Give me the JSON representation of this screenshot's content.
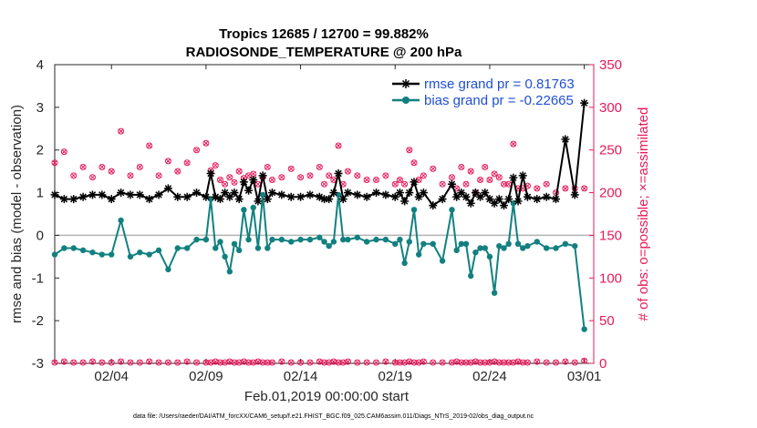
{
  "chart_data": {
    "type": "line",
    "title": [
      "Tropics 12685 / 12700 = 99.882%",
      "RADIOSONDE_TEMPERATURE @ 200 hPa"
    ],
    "xlabel": "Feb.01,2019 00:00:00 start",
    "ylabel": "rmse and bias (model - observation)",
    "ylabel_right": "# of obs: o=possible; ×=assimilated",
    "ylim": [
      -3,
      4
    ],
    "ylim_right": [
      0,
      350
    ],
    "xlim": [
      0,
      28.5
    ],
    "xticks": [
      {
        "x": 3,
        "label": "02/04"
      },
      {
        "x": 8,
        "label": "02/09"
      },
      {
        "x": 13,
        "label": "02/14"
      },
      {
        "x": 18,
        "label": "02/19"
      },
      {
        "x": 23,
        "label": "02/24"
      },
      {
        "x": 28,
        "label": "03/01"
      }
    ],
    "yticks": [
      4,
      3,
      2,
      1,
      0,
      -1,
      -2,
      -3
    ],
    "yticks_right": [
      350,
      300,
      250,
      200,
      150,
      100,
      50,
      0
    ],
    "colors": {
      "rmse": "#000000",
      "bias": "#138080",
      "obs": "#e8195a",
      "zero": "#b3b3b3",
      "legend_text": "#1f4fd6"
    },
    "series": [
      {
        "name": "rmse grand pr = 0.81763",
        "key": "rmse",
        "x": [
          0,
          0.5,
          1,
          1.5,
          2,
          2.5,
          3,
          3.5,
          4,
          4.5,
          5,
          5.5,
          6,
          6.5,
          7,
          7.5,
          8,
          8.25,
          8.5,
          8.75,
          9,
          9.25,
          9.5,
          9.75,
          10,
          10.25,
          10.5,
          10.75,
          11,
          11.25,
          11.5,
          12,
          12.5,
          13,
          13.5,
          14,
          14.25,
          14.5,
          14.75,
          15,
          15.25,
          15.5,
          16,
          16.5,
          17,
          17.5,
          18,
          18.25,
          18.5,
          18.75,
          19,
          19.25,
          19.5,
          20,
          20.5,
          21,
          21.25,
          21.5,
          21.75,
          22,
          22.25,
          22.5,
          22.75,
          23,
          23.25,
          23.5,
          23.75,
          24,
          24.25,
          24.5,
          24.75,
          25,
          25.5,
          26,
          26.5,
          27,
          27.5,
          28
        ],
        "y": [
          0.95,
          0.85,
          0.85,
          0.9,
          0.95,
          0.95,
          0.85,
          1.0,
          0.95,
          0.95,
          0.85,
          0.95,
          1.1,
          0.9,
          0.9,
          1.0,
          0.9,
          1.45,
          0.9,
          0.85,
          1.0,
          0.9,
          1.0,
          0.85,
          1.25,
          1.05,
          1.3,
          0.8,
          1.4,
          0.85,
          1.0,
          0.95,
          0.9,
          0.9,
          0.95,
          0.9,
          0.85,
          0.85,
          1.0,
          1.45,
          0.85,
          1.0,
          0.95,
          0.9,
          1.0,
          0.95,
          0.9,
          1.0,
          0.8,
          1.0,
          1.25,
          0.9,
          1.0,
          0.7,
          0.85,
          1.2,
          0.9,
          1.0,
          0.9,
          0.75,
          1.0,
          0.9,
          1.0,
          0.85,
          0.75,
          0.85,
          0.7,
          0.85,
          1.35,
          0.8,
          1.4,
          0.9,
          0.85,
          0.9,
          0.85,
          2.25,
          0.95,
          3.1
        ]
      },
      {
        "name": "bias grand pr = -0.22665",
        "key": "bias",
        "x": [
          0,
          0.5,
          1,
          1.5,
          2,
          2.5,
          3,
          3.5,
          4,
          4.5,
          5,
          5.5,
          6,
          6.5,
          7,
          7.5,
          8,
          8.25,
          8.5,
          8.75,
          9,
          9.25,
          9.5,
          9.75,
          10,
          10.25,
          10.5,
          10.75,
          11,
          11.25,
          11.5,
          12,
          12.5,
          13,
          13.5,
          14,
          14.25,
          14.5,
          14.75,
          15,
          15.25,
          15.5,
          16,
          16.5,
          17,
          17.5,
          18,
          18.25,
          18.5,
          18.75,
          19,
          19.25,
          19.5,
          20,
          20.5,
          21,
          21.25,
          21.5,
          21.75,
          22,
          22.25,
          22.5,
          22.75,
          23,
          23.25,
          23.5,
          23.75,
          24,
          24.25,
          24.5,
          24.75,
          25,
          25.5,
          26,
          26.5,
          27,
          27.5,
          28
        ],
        "y": [
          -0.45,
          -0.3,
          -0.3,
          -0.35,
          -0.4,
          -0.45,
          -0.45,
          0.35,
          -0.5,
          -0.4,
          -0.45,
          -0.35,
          -0.8,
          -0.3,
          -0.3,
          -0.1,
          -0.1,
          0.85,
          -0.3,
          -0.15,
          -0.5,
          -0.85,
          -0.2,
          -0.35,
          0.6,
          -0.1,
          0.65,
          -0.3,
          0.95,
          -0.3,
          -0.1,
          -0.1,
          -0.15,
          -0.1,
          -0.1,
          -0.05,
          -0.15,
          -0.25,
          -0.15,
          0.95,
          -0.1,
          -0.1,
          -0.05,
          -0.15,
          -0.1,
          -0.1,
          -0.2,
          -0.1,
          -0.65,
          -0.15,
          0.6,
          -0.45,
          -0.2,
          -0.2,
          -0.6,
          0.6,
          -0.35,
          -0.2,
          -0.2,
          -0.95,
          -0.4,
          -0.3,
          -0.3,
          -0.5,
          -1.35,
          -0.25,
          -0.3,
          -0.2,
          0.75,
          -0.2,
          -0.3,
          -0.25,
          -0.15,
          -0.3,
          -0.3,
          -0.2,
          -0.25,
          -2.2
        ]
      },
      {
        "name": "possible",
        "key": "obs_possible",
        "x": [
          0,
          0.5,
          1,
          1.5,
          2,
          2.5,
          3,
          3.5,
          4,
          4.5,
          5,
          5.5,
          6,
          6.5,
          7,
          7.5,
          8,
          8.25,
          8.5,
          8.75,
          9,
          9.25,
          9.5,
          9.75,
          10,
          10.25,
          10.5,
          10.75,
          11,
          11.25,
          11.5,
          12,
          12.5,
          13,
          13.5,
          14,
          14.25,
          14.5,
          14.75,
          15,
          15.25,
          15.5,
          16,
          16.5,
          17,
          17.5,
          18,
          18.25,
          18.5,
          18.75,
          19,
          19.25,
          19.5,
          20,
          20.5,
          21,
          21.25,
          21.5,
          21.75,
          22,
          22.25,
          22.5,
          22.75,
          23,
          23.25,
          23.5,
          23.75,
          24,
          24.25,
          24.5,
          24.75,
          25,
          25.5,
          26,
          26.5,
          27,
          27.5,
          28
        ],
        "y": [
          235,
          248,
          220,
          230,
          218,
          230,
          225,
          272,
          220,
          230,
          255,
          220,
          237,
          225,
          235,
          250,
          258,
          226,
          232,
          215,
          210,
          218,
          212,
          225,
          217,
          220,
          222,
          210,
          218,
          230,
          215,
          218,
          228,
          218,
          220,
          230,
          210,
          220,
          215,
          255,
          210,
          225,
          220,
          215,
          215,
          220,
          210,
          215,
          210,
          250,
          235,
          215,
          220,
          228,
          210,
          218,
          205,
          230,
          210,
          225,
          200,
          215,
          230,
          215,
          222,
          218,
          210,
          210,
          257,
          205,
          205,
          208,
          205,
          210,
          200,
          205,
          205,
          205
        ]
      },
      {
        "name": "assimilated",
        "key": "obs_assimilated",
        "x": [
          0,
          0.5,
          1,
          1.5,
          2,
          2.5,
          3,
          3.5,
          4,
          4.5,
          5,
          5.5,
          6,
          6.5,
          7,
          7.5,
          8,
          8.25,
          8.5,
          8.75,
          9,
          9.25,
          9.5,
          9.75,
          10,
          10.25,
          10.5,
          10.75,
          11,
          11.25,
          11.5,
          12,
          12.5,
          13,
          13.5,
          14,
          14.25,
          14.5,
          14.75,
          15,
          15.25,
          15.5,
          16,
          16.5,
          17,
          17.5,
          18,
          18.25,
          18.5,
          18.75,
          19,
          19.25,
          19.5,
          20,
          20.5,
          21,
          21.25,
          21.5,
          21.75,
          22,
          22.25,
          22.5,
          22.75,
          23,
          23.25,
          23.5,
          23.75,
          24,
          24.25,
          24.5,
          24.75,
          25,
          25.5,
          26,
          26.5,
          27,
          27.5,
          28
        ],
        "y": [
          1,
          2,
          1,
          1,
          2,
          1,
          1,
          2,
          1,
          1,
          2,
          1,
          1,
          1,
          2,
          1,
          1,
          1,
          2,
          1,
          1,
          2,
          1,
          1,
          2,
          1,
          1,
          2,
          1,
          1,
          1,
          2,
          1,
          1,
          1,
          2,
          1,
          1,
          2,
          1,
          1,
          2,
          1,
          1,
          1,
          2,
          1,
          1,
          1,
          2,
          1,
          1,
          2,
          1,
          1,
          1,
          2,
          1,
          1,
          1,
          2,
          1,
          1,
          1,
          2,
          1,
          1,
          1,
          1,
          2,
          1,
          1,
          2,
          1,
          1,
          2,
          1,
          3
        ]
      }
    ],
    "legend_position": "top-right",
    "footnote": "data file: /Users/raeder/DAI/ATM_forcXX/CAM6_setup/f.e21.FHIST_BGC.f09_025.CAM6assim.011/Diags_NTrS_2019-02/obs_diag_output.nc"
  }
}
